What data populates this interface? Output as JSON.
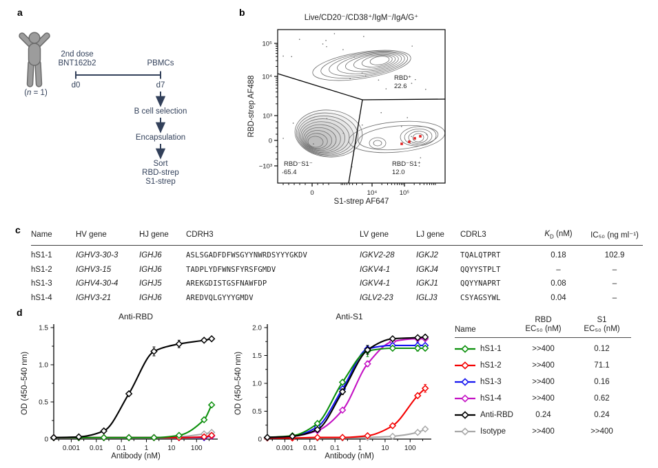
{
  "figure": {
    "panel_labels": {
      "a": "a",
      "b": "b",
      "c": "c",
      "d": "d"
    }
  },
  "panel_a": {
    "n_label_pre": "(",
    "n_label_var": "n",
    "n_label_post": " = 1)",
    "dose_line1": "2nd dose",
    "dose_line2": "BNT162b2",
    "pbmcs": "PBMCs",
    "d0": "d0",
    "d7": "d7",
    "step1": "B cell selection",
    "step2": "Encapsulation",
    "sort1": "Sort",
    "sort2": "RBD-strep",
    "sort3": "S1-strep"
  },
  "panel_b": {
    "title": "Live/CD20⁻/CD38⁺/IgM⁻/IgA/G⁺",
    "xlabel": "S1-strep AF647",
    "ylabel": "RBD-strep AF488",
    "ytick_labels": [
      "10⁵",
      "10⁴",
      "10³",
      "0",
      "−10³"
    ],
    "xtick_labels": [
      "0",
      "10⁴",
      "10⁵"
    ],
    "gates": [
      {
        "name": "RBD⁺",
        "value": "22.6"
      },
      {
        "name": "RBD⁻S1⁻",
        "value": "65.4"
      },
      {
        "name": "RBD⁻S1⁺",
        "value": "12.0"
      }
    ]
  },
  "panel_c": {
    "headers": {
      "name": "Name",
      "hv": "HV gene",
      "hj": "HJ gene",
      "cdrh3": "CDRH3",
      "lv": "LV gene",
      "lj": "LJ gene",
      "cdrl3": "CDRL3",
      "kd_k": "K",
      "kd_sub": "D",
      "kd_unit": " (nM)",
      "ic50": "IC₅₀ (ng ml⁻¹)"
    },
    "rows": [
      {
        "name": "hS1-1",
        "hv": "IGHV3-30-3",
        "hj": "IGHJ6",
        "cdrh3": "ASLSGADFDFWSGYYNWRDSYYYGKDV",
        "lv": "IGKV2-28",
        "lj": "IGKJ2",
        "cdrl3": "TQALQTPRT",
        "kd": "0.18",
        "ic50": "102.9"
      },
      {
        "name": "hS1-2",
        "hv": "IGHV3-15",
        "hj": "IGHJ6",
        "cdrh3": "TADPLYDFWNSFYRSFGMDV",
        "lv": "IGKV4-1",
        "lj": "IGKJ4",
        "cdrl3": "QQYYSTPLT",
        "kd": "–",
        "ic50": "–"
      },
      {
        "name": "hS1-3",
        "hv": "IGHV4-30-4",
        "hj": "IGHJ5",
        "cdrh3": "AREKGDISTGSFNAWFDP",
        "lv": "IGKV4-1",
        "lj": "IGKJ1",
        "cdrl3": "QQYYNAPRT",
        "kd": "0.08",
        "ic50": "–"
      },
      {
        "name": "hS1-4",
        "hv": "IGHV3-21",
        "hj": "IGHJ6",
        "cdrh3": "AREDVQLGYYYGMDV",
        "lv": "IGLV2-23",
        "lj": "IGLJ3",
        "cdrl3": "CSYAGSYWL",
        "kd": "0.04",
        "ic50": "–"
      }
    ]
  },
  "chart_data": [
    {
      "type": "line",
      "title": "Anti-RBD",
      "xlabel": "Antibody (nM)",
      "ylabel": "OD (450–540 nm)",
      "xscale": "log",
      "xlim": [
        0.0002,
        700
      ],
      "ylim": [
        0,
        1.5
      ],
      "xtick_values": [
        0.001,
        0.01,
        0.1,
        1,
        10,
        100
      ],
      "xtick_labels": [
        "0.001",
        "0.01",
        "0.1",
        "1",
        "10",
        "100"
      ],
      "ytick_values": [
        0,
        0.5,
        1.0,
        1.5
      ],
      "ytick_labels": [
        "0",
        "0.5",
        "1.0",
        "1.5"
      ],
      "x": [
        0.0002,
        0.002,
        0.02,
        0.2,
        2,
        20,
        200,
        400
      ],
      "series": [
        {
          "name": "Isotype",
          "color": "#a8a8a8",
          "values": [
            0.02,
            0.02,
            0.02,
            0.02,
            0.02,
            0.03,
            0.07,
            0.09
          ],
          "err": [
            0,
            0,
            0,
            0,
            0,
            0,
            0.02,
            0.02
          ]
        },
        {
          "name": "hS1-4",
          "color": "#c412c4",
          "values": [
            0.02,
            0.02,
            0.02,
            0.02,
            0.02,
            0.02,
            0.03,
            0.04
          ],
          "err": [
            0,
            0,
            0,
            0,
            0,
            0,
            0,
            0.02
          ]
        },
        {
          "name": "hS1-3",
          "color": "#1414f0",
          "values": [
            0.02,
            0.02,
            0.02,
            0.02,
            0.02,
            0.02,
            0.02,
            0.05
          ],
          "err": [
            0,
            0,
            0,
            0,
            0,
            0,
            0,
            0.02
          ]
        },
        {
          "name": "hS1-2",
          "color": "#f40000",
          "values": [
            0.02,
            0.02,
            0.02,
            0.02,
            0.02,
            0.02,
            0.03,
            0.05
          ],
          "err": [
            0,
            0,
            0,
            0,
            0,
            0,
            0,
            0
          ]
        },
        {
          "name": "hS1-1",
          "color": "#0a8f0a",
          "values": [
            0.02,
            0.02,
            0.02,
            0.02,
            0.02,
            0.05,
            0.26,
            0.46
          ],
          "err": [
            0,
            0,
            0,
            0,
            0,
            0,
            0.02,
            0.02
          ]
        },
        {
          "name": "Anti-RBD",
          "color": "#000000",
          "values": [
            0.02,
            0.03,
            0.11,
            0.61,
            1.18,
            1.28,
            1.33,
            1.35
          ],
          "err": [
            0,
            0,
            0.02,
            0.02,
            0.06,
            0.05,
            0.02,
            0.02
          ]
        }
      ]
    },
    {
      "type": "line",
      "title": "Anti-S1",
      "xlabel": "Antibody (nM)",
      "ylabel": "OD (450–540 nm)",
      "xscale": "log",
      "xlim": [
        0.0002,
        700
      ],
      "ylim": [
        0,
        2.0
      ],
      "xtick_values": [
        0.001,
        0.01,
        0.1,
        1,
        10,
        100
      ],
      "xtick_labels": [
        "0.001",
        "0.01",
        "0.1",
        "1",
        "10",
        "100"
      ],
      "ytick_values": [
        0,
        0.5,
        1.0,
        1.5,
        2.0
      ],
      "ytick_labels": [
        "0",
        "0.5",
        "1.0",
        "1.5",
        "2.0"
      ],
      "x": [
        0.0002,
        0.002,
        0.02,
        0.2,
        2,
        20,
        200,
        400
      ],
      "series": [
        {
          "name": "Isotype",
          "color": "#a8a8a8",
          "values": [
            0.02,
            0.02,
            0.02,
            0.02,
            0.03,
            0.05,
            0.12,
            0.18
          ],
          "err": [
            0,
            0,
            0,
            0,
            0,
            0,
            0.02,
            0.03
          ]
        },
        {
          "name": "hS1-2",
          "color": "#f40000",
          "values": [
            0.02,
            0.02,
            0.03,
            0.03,
            0.06,
            0.24,
            0.78,
            0.91
          ],
          "err": [
            0,
            0,
            0,
            0,
            0,
            0.02,
            0.04,
            0.07
          ]
        },
        {
          "name": "hS1-4",
          "color": "#c412c4",
          "values": [
            0.03,
            0.05,
            0.15,
            0.52,
            1.35,
            1.75,
            1.8,
            1.8
          ],
          "err": [
            0,
            0,
            0.02,
            0.03,
            0.05,
            0.04,
            0.03,
            0.03
          ]
        },
        {
          "name": "hS1-3",
          "color": "#1414f0",
          "values": [
            0.03,
            0.05,
            0.22,
            0.9,
            1.62,
            1.68,
            1.68,
            1.68
          ],
          "err": [
            0,
            0,
            0.02,
            0.04,
            0.06,
            0.03,
            0.06,
            0.03
          ]
        },
        {
          "name": "hS1-1",
          "color": "#0a8f0a",
          "values": [
            0.03,
            0.06,
            0.28,
            1.02,
            1.58,
            1.63,
            1.63,
            1.63
          ],
          "err": [
            0,
            0,
            0.03,
            0.04,
            0.1,
            0.03,
            0.05,
            0.04
          ]
        },
        {
          "name": "Anti-RBD",
          "color": "#000000",
          "values": [
            0.03,
            0.05,
            0.17,
            0.85,
            1.6,
            1.8,
            1.82,
            1.83
          ],
          "err": [
            0,
            0,
            0.02,
            0.05,
            0.08,
            0.03,
            0.02,
            0.04
          ]
        }
      ]
    }
  ],
  "legend_table": {
    "name_header": "Name",
    "col1_line1": "RBD",
    "col1_line2": "EC₅₀ (nM)",
    "col2_line1": "S1",
    "col2_line2": "EC₅₀ (nM)",
    "rows": [
      {
        "name": "hS1-1",
        "color": "#0a8f0a",
        "rbd": ">>400",
        "s1": "0.12"
      },
      {
        "name": "hS1-2",
        "color": "#f40000",
        "rbd": ">>400",
        "s1": "71.1"
      },
      {
        "name": "hS1-3",
        "color": "#1414f0",
        "rbd": ">>400",
        "s1": "0.16"
      },
      {
        "name": "hS1-4",
        "color": "#c412c4",
        "rbd": ">>400",
        "s1": "0.62"
      },
      {
        "name": "Anti-RBD",
        "color": "#000000",
        "rbd": "0.24",
        "s1": "0.24"
      },
      {
        "name": "Isotype",
        "color": "#a8a8a8",
        "rbd": ">>400",
        "s1": ">>400"
      }
    ]
  }
}
